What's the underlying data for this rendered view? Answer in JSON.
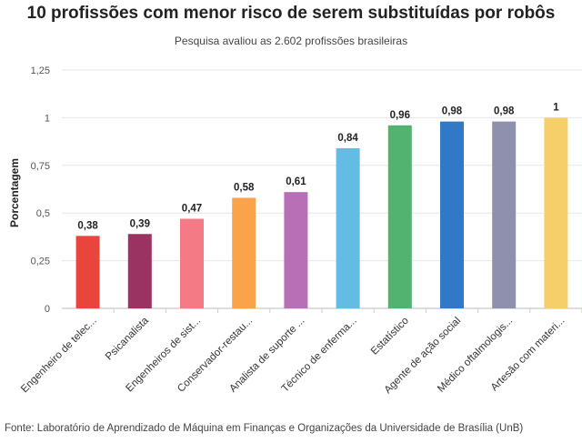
{
  "chart_data": {
    "type": "bar",
    "title": "10 profissões com menor risco de serem substituídas por robôs",
    "subtitle": "Pesquisa avaliou as 2.602 profissões brasileiras",
    "ylabel": "Porcentagem",
    "ylim": [
      0,
      1.25
    ],
    "yticks": [
      "0",
      "0,25",
      "0,5",
      "0,75",
      "1",
      "1,25"
    ],
    "grid": true,
    "categories": [
      "Engenheiro de telec...",
      "Psicanalista",
      "Engenheiros de sist...",
      "Conservador-restau...",
      "Analista de suporte ...",
      "Técnico de enferma...",
      "Estatístico",
      "Agente de ação social",
      "Médico oftalmologis...",
      "Artesão com materi..."
    ],
    "values": [
      0.38,
      0.39,
      0.47,
      0.58,
      0.61,
      0.84,
      0.96,
      0.98,
      0.98,
      1
    ],
    "data_labels": [
      "0,38",
      "0,39",
      "0,47",
      "0,58",
      "0,61",
      "0,84",
      "0,96",
      "0,98",
      "0,98",
      "1"
    ],
    "colors": [
      "#e8453c",
      "#9b3362",
      "#f47b85",
      "#f9a34a",
      "#b96fb5",
      "#62bce3",
      "#52b26f",
      "#3178c6",
      "#8e90ad",
      "#f6cf6b"
    ],
    "source": "Fonte: Laboratório de Aprendizado de Máquina em Finanças e Organizações da Universidade de Brasília (UnB)"
  }
}
